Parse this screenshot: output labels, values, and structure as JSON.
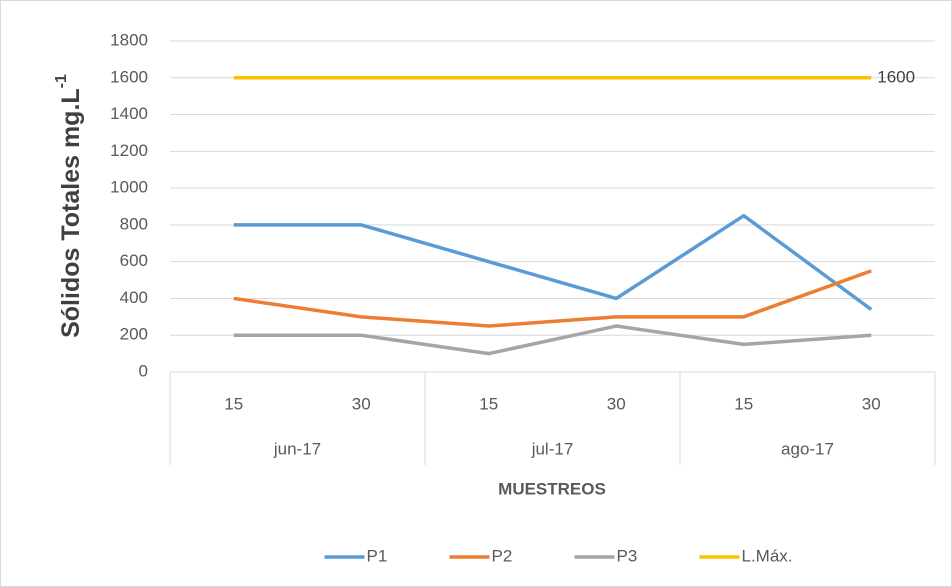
{
  "chart_data": {
    "type": "line",
    "ylabel": "Sólidos Totales mg.L",
    "ylabel_superscript": "-1",
    "xlabel": "MUESTREOS",
    "categories": [
      "15",
      "30",
      "15",
      "30",
      "15",
      "30"
    ],
    "groups": [
      "jun-17",
      "jul-17",
      "ago-17"
    ],
    "series": [
      {
        "name": "P1",
        "color": "#5b9bd5",
        "values": [
          800,
          800,
          600,
          400,
          850,
          340
        ]
      },
      {
        "name": "P2",
        "color": "#ed7d31",
        "values": [
          400,
          300,
          250,
          300,
          300,
          550
        ]
      },
      {
        "name": "P3",
        "color": "#a5a5a5",
        "values": [
          200,
          200,
          100,
          250,
          150,
          200
        ]
      },
      {
        "name": "L.Máx.",
        "color": "#ffc000",
        "values": [
          1600,
          1600,
          1600,
          1600,
          1600,
          1600
        ],
        "value_labels": [
          null,
          null,
          null,
          null,
          null,
          "1600"
        ]
      }
    ],
    "ylim": [
      0,
      1800
    ],
    "yticks": [
      0,
      200,
      400,
      600,
      800,
      1000,
      1200,
      1400,
      1600,
      1800
    ],
    "grid": true,
    "legend": "bottom"
  }
}
